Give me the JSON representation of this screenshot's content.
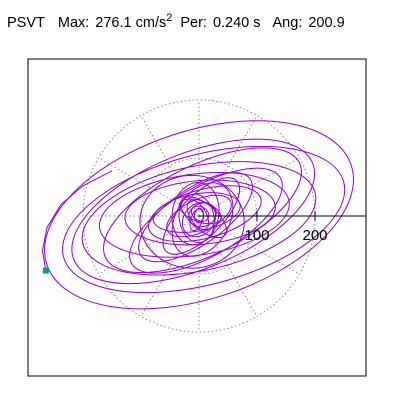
{
  "header": {
    "label": "PSVT",
    "max_label": "Max:",
    "max_value": "276.1 cm/s",
    "max_superscript": "2",
    "per_label": "Per:",
    "per_value": "0.240 s",
    "ang_label": "Ang:",
    "ang_value": "200.9"
  },
  "colors": {
    "orbit": "#9400d3",
    "marker": "#00a080",
    "grid": "#888888",
    "axis": "#000000",
    "frame": "#000000"
  },
  "chart_data": {
    "type": "polar-orbit",
    "title": "PSVT",
    "max_cm_s2": 276.1,
    "period_s": 0.24,
    "angle_deg": 200.9,
    "radial_ticks": [
      100,
      200
    ],
    "radial_tick_labels": [
      "100",
      "200"
    ],
    "grid_rings": [
      100,
      200
    ],
    "radial_spokes": 12,
    "axis_direction": "east",
    "scale": "linear",
    "marker": {
      "x": -264,
      "y": -94
    },
    "orbit_ellipses": [
      {
        "a": 276,
        "b": 145,
        "rot": 18,
        "cx": 0,
        "cy": 2
      },
      {
        "a": 250,
        "b": 112,
        "rot": 15,
        "cx": 8,
        "cy": -6
      },
      {
        "a": 222,
        "b": 100,
        "rot": 22,
        "cx": -10,
        "cy": 8
      },
      {
        "a": 205,
        "b": 90,
        "rot": 12,
        "cx": 0,
        "cy": -4
      },
      {
        "a": 186,
        "b": 78,
        "rot": 26,
        "cx": 6,
        "cy": 10
      },
      {
        "a": 165,
        "b": 70,
        "rot": 8,
        "cx": -8,
        "cy": 2
      },
      {
        "a": 148,
        "b": 60,
        "rot": 30,
        "cx": 12,
        "cy": -8
      },
      {
        "a": 130,
        "b": 55,
        "rot": 5,
        "cx": 2,
        "cy": 6
      },
      {
        "a": 115,
        "b": 48,
        "rot": 35,
        "cx": -6,
        "cy": -2
      },
      {
        "a": 100,
        "b": 42,
        "rot": 15,
        "cx": 10,
        "cy": 4
      },
      {
        "a": 90,
        "b": 80,
        "rot": 0,
        "cx": -12,
        "cy": -10
      },
      {
        "a": 86,
        "b": 36,
        "rot": 45,
        "cx": 4,
        "cy": 0
      },
      {
        "a": 76,
        "b": 32,
        "rot": 10,
        "cx": -4,
        "cy": 6
      },
      {
        "a": 68,
        "b": 46,
        "rot": 60,
        "cx": 6,
        "cy": -6
      },
      {
        "a": 60,
        "b": 28,
        "rot": 25,
        "cx": 0,
        "cy": 0
      },
      {
        "a": 54,
        "b": 40,
        "rot": 80,
        "cx": -6,
        "cy": 4
      },
      {
        "a": 48,
        "b": 22,
        "rot": 140,
        "cx": 8,
        "cy": -2
      },
      {
        "a": 42,
        "b": 30,
        "rot": 100,
        "cx": -4,
        "cy": -4
      },
      {
        "a": 38,
        "b": 18,
        "rot": 160,
        "cx": 2,
        "cy": 8
      },
      {
        "a": 32,
        "b": 26,
        "rot": 50,
        "cx": 0,
        "cy": -6
      },
      {
        "a": 28,
        "b": 14,
        "rot": 120,
        "cx": -2,
        "cy": 2
      },
      {
        "a": 24,
        "b": 20,
        "rot": 20,
        "cx": 6,
        "cy": 2
      },
      {
        "a": 20,
        "b": 10,
        "rot": 70,
        "cx": -4,
        "cy": -6
      },
      {
        "a": 16,
        "b": 12,
        "rot": 150,
        "cx": 2,
        "cy": 4
      },
      {
        "a": 12,
        "b": 8,
        "rot": 90,
        "cx": 0,
        "cy": 0
      }
    ],
    "tail_segment": [
      [
        -264,
        -94
      ],
      [
        -270,
        -60
      ],
      [
        -262,
        -20
      ],
      [
        -238,
        20
      ],
      [
        -200,
        52
      ],
      [
        -150,
        78
      ]
    ]
  }
}
